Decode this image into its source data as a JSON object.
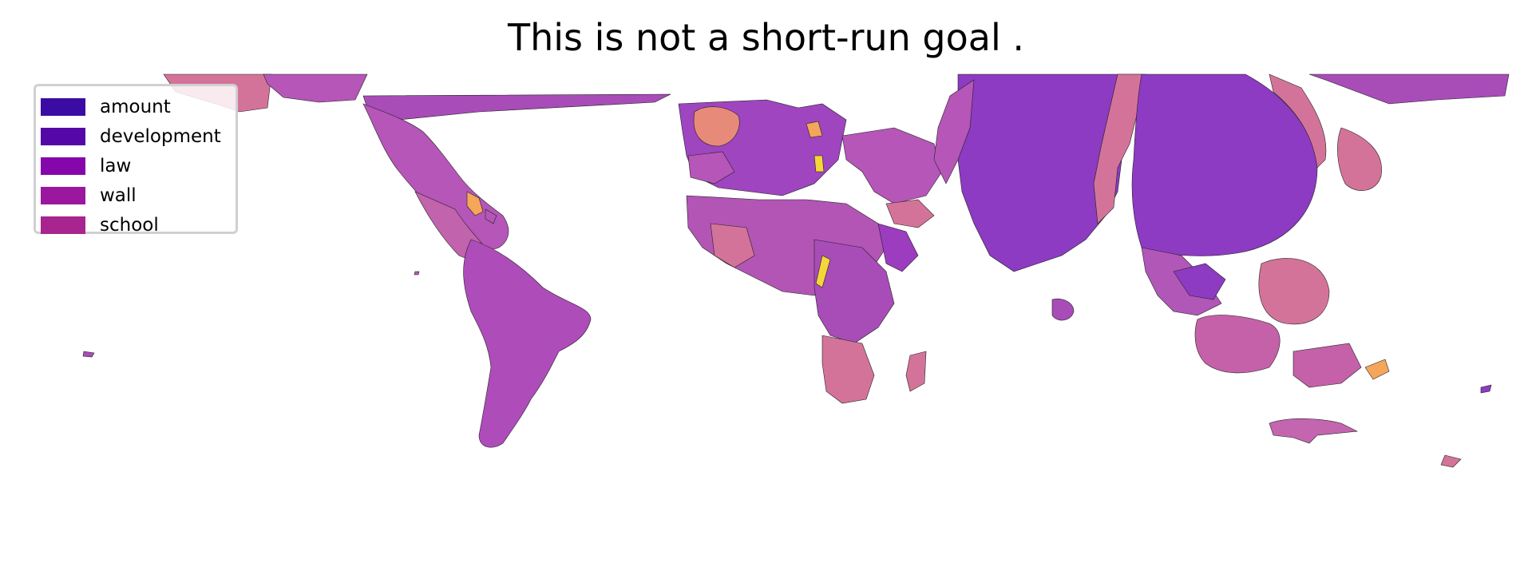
{
  "title": "This is not a short-run goal .",
  "legend": {
    "items": [
      {
        "label": "amount",
        "color": "#3a0ca3"
      },
      {
        "label": "development",
        "color": "#5508a6"
      },
      {
        "label": "law",
        "color": "#8507ab"
      },
      {
        "label": "wall",
        "color": "#9b179e"
      },
      {
        "label": "school",
        "color": "#a8248f"
      }
    ]
  },
  "palette": {
    "dominant": "#8c3bc2",
    "secondary": "#a84cb8",
    "pink": "#d4739a",
    "salmon": "#e88a7a",
    "orange": "#f5a65b",
    "yellow": "#f5d63a",
    "outline": "#222222"
  },
  "regions": [
    {
      "name": "north-america",
      "color": "#b556b8"
    },
    {
      "name": "greenland",
      "color": "#d4739a"
    },
    {
      "name": "south-america",
      "color": "#ae4cba"
    },
    {
      "name": "europe",
      "color": "#9f45c0"
    },
    {
      "name": "africa",
      "color": "#b255b5"
    },
    {
      "name": "russia",
      "color": "#8c3bc2"
    },
    {
      "name": "india",
      "color": "#8b3cc3"
    },
    {
      "name": "china",
      "color": "#8c3bc2"
    },
    {
      "name": "southeast-asia",
      "color": "#b157b8"
    },
    {
      "name": "japan",
      "color": "#d4739a"
    },
    {
      "name": "indonesia",
      "color": "#c561a8"
    },
    {
      "name": "australia",
      "color": "#c465b0"
    },
    {
      "name": "new-zealand",
      "color": "#d4739a"
    }
  ]
}
